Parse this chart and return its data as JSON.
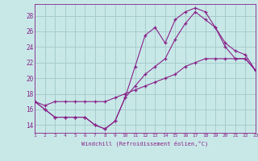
{
  "xlabel": "Windchill (Refroidissement éolien,°C)",
  "xlim": [
    1,
    23
  ],
  "ylim": [
    13,
    29.5
  ],
  "yticks": [
    14,
    16,
    18,
    20,
    22,
    24,
    26,
    28
  ],
  "xticks": [
    1,
    2,
    3,
    4,
    5,
    6,
    7,
    8,
    9,
    10,
    11,
    12,
    13,
    14,
    15,
    16,
    17,
    18,
    19,
    20,
    21,
    22,
    23
  ],
  "bg_color": "#c8e8e8",
  "grid_color": "#a8cccc",
  "line_color": "#882288",
  "series1_x": [
    1,
    2,
    3,
    4,
    5,
    6,
    7,
    8,
    9,
    10,
    11,
    12,
    13,
    14,
    15,
    16,
    17,
    18,
    19,
    20,
    21,
    22,
    23
  ],
  "series1_y": [
    17.0,
    16.0,
    15.0,
    15.0,
    15.0,
    15.0,
    14.0,
    13.5,
    14.5,
    17.5,
    21.5,
    25.5,
    26.5,
    24.5,
    27.5,
    28.5,
    29.0,
    28.5,
    26.5,
    24.0,
    22.5,
    22.5,
    21.0
  ],
  "series2_x": [
    1,
    2,
    3,
    4,
    5,
    6,
    7,
    8,
    9,
    10,
    11,
    12,
    13,
    14,
    15,
    16,
    17,
    18,
    19,
    20,
    21,
    22,
    23
  ],
  "series2_y": [
    17.0,
    16.5,
    17.0,
    17.0,
    17.0,
    17.0,
    17.0,
    17.0,
    17.5,
    18.0,
    18.5,
    19.0,
    19.5,
    20.0,
    20.5,
    21.5,
    22.0,
    22.5,
    22.5,
    22.5,
    22.5,
    22.5,
    21.0
  ],
  "series3_x": [
    1,
    2,
    3,
    4,
    5,
    6,
    7,
    8,
    9,
    10,
    11,
    12,
    13,
    14,
    15,
    16,
    17,
    18,
    19,
    20,
    21,
    22,
    23
  ],
  "series3_y": [
    17.0,
    16.0,
    15.0,
    15.0,
    15.0,
    15.0,
    14.0,
    13.5,
    14.5,
    17.5,
    19.0,
    20.5,
    21.5,
    22.5,
    25.0,
    27.0,
    28.5,
    27.5,
    26.5,
    24.5,
    23.5,
    23.0,
    21.0
  ]
}
